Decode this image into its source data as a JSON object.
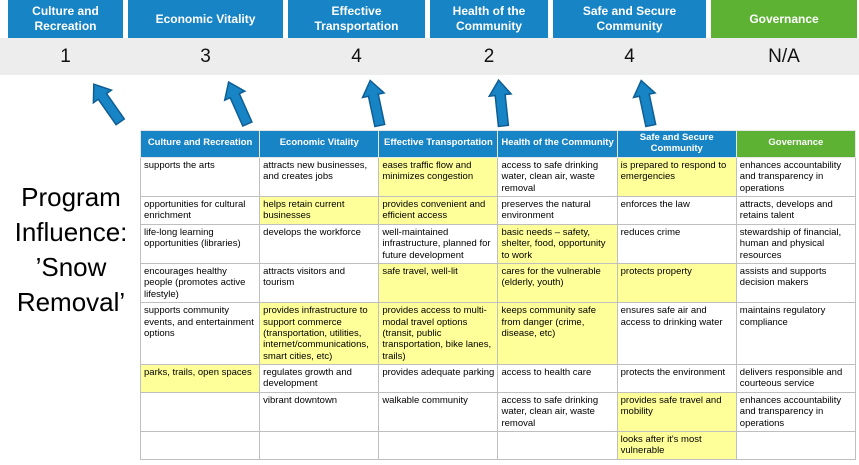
{
  "title": "Program Influence: ’Snow Removal’",
  "colors": {
    "blue": "#1784C5",
    "green": "#5EB233",
    "yellow": "#FFFF99",
    "band": "#EDEDED",
    "arrow-outline": "#0F5E93"
  },
  "categories": [
    {
      "label": "Culture and Recreation",
      "score": "1",
      "theme": "blue"
    },
    {
      "label": "Economic Vitality",
      "score": "3",
      "theme": "blue"
    },
    {
      "label": "Effective Transportation",
      "score": "4",
      "theme": "blue"
    },
    {
      "label": "Health of the Community",
      "score": "2",
      "theme": "blue"
    },
    {
      "label": "Safe and Secure Community",
      "score": "4",
      "theme": "blue"
    },
    {
      "label": "Governance",
      "score": "N/A",
      "theme": "green"
    }
  ],
  "matrix": {
    "headers": [
      {
        "label": "Culture and Recreation",
        "theme": "blue"
      },
      {
        "label": "Economic Vitality",
        "theme": "blue"
      },
      {
        "label": "Effective Transportation",
        "theme": "blue"
      },
      {
        "label": "Health of the Community",
        "theme": "blue"
      },
      {
        "label": "Safe and Secure Community",
        "theme": "blue"
      },
      {
        "label": "Governance",
        "theme": "green"
      }
    ],
    "rows": [
      [
        {
          "text": "supports the arts",
          "highlight": false
        },
        {
          "text": "attracts new businesses, and creates jobs",
          "highlight": false
        },
        {
          "text": "eases traffic flow and minimizes congestion",
          "highlight": true
        },
        {
          "text": "access to safe drinking water, clean air, waste removal",
          "highlight": false
        },
        {
          "text": "is prepared to respond to emergencies",
          "highlight": true
        },
        {
          "text": "enhances accountability and transparency in operations",
          "highlight": false
        }
      ],
      [
        {
          "text": "opportunities for cultural enrichment",
          "highlight": false
        },
        {
          "text": "helps retain current businesses",
          "highlight": true
        },
        {
          "text": "provides convenient and efficient access",
          "highlight": true
        },
        {
          "text": "preserves the natural environment",
          "highlight": false
        },
        {
          "text": "enforces the law",
          "highlight": false
        },
        {
          "text": "attracts, develops and retains talent",
          "highlight": false
        }
      ],
      [
        {
          "text": "life-long learning opportunities (libraries)",
          "highlight": false
        },
        {
          "text": "develops the workforce",
          "highlight": false
        },
        {
          "text": "well-maintained infrastructure, planned for future development",
          "highlight": false
        },
        {
          "text": "basic needs – safety, shelter, food, opportunity to work",
          "highlight": true
        },
        {
          "text": "reduces crime",
          "highlight": false
        },
        {
          "text": "stewardship of financial, human and physical resources",
          "highlight": false
        }
      ],
      [
        {
          "text": "encourages healthy people (promotes active lifestyle)",
          "highlight": false
        },
        {
          "text": "attracts visitors and tourism",
          "highlight": false
        },
        {
          "text": "safe travel, well-lit",
          "highlight": true
        },
        {
          "text": "cares for the vulnerable (elderly, youth)",
          "highlight": true
        },
        {
          "text": "protects property",
          "highlight": true
        },
        {
          "text": "assists and supports decision makers",
          "highlight": false
        }
      ],
      [
        {
          "text": "supports community events, and entertainment options",
          "highlight": false
        },
        {
          "text": "provides infrastructure to support commerce (transportation, utilities, internet/communications, smart cities, etc)",
          "highlight": true
        },
        {
          "text": "provides access to multi-modal travel options (transit, public transportation, bike lanes, trails)",
          "highlight": true
        },
        {
          "text": "keeps community safe from danger (crime, disease, etc)",
          "highlight": true
        },
        {
          "text": "ensures safe air and access to drinking water",
          "highlight": false
        },
        {
          "text": "maintains regulatory compliance",
          "highlight": false
        }
      ],
      [
        {
          "text": "parks, trails, open spaces",
          "highlight": true
        },
        {
          "text": "regulates growth and development",
          "highlight": false
        },
        {
          "text": "provides adequate parking",
          "highlight": false
        },
        {
          "text": "access to health care",
          "highlight": false
        },
        {
          "text": "protects the environment",
          "highlight": false
        },
        {
          "text": "delivers responsible and courteous service",
          "highlight": false
        }
      ],
      [
        {
          "text": "",
          "highlight": false
        },
        {
          "text": "vibrant downtown",
          "highlight": false
        },
        {
          "text": "walkable community",
          "highlight": false
        },
        {
          "text": "access to safe drinking water, clean air, waste removal",
          "highlight": false
        },
        {
          "text": "provides safe travel and mobility",
          "highlight": true
        },
        {
          "text": "enhances accountability and transparency in operations",
          "highlight": false
        }
      ],
      [
        {
          "text": "",
          "highlight": false
        },
        {
          "text": "",
          "highlight": false
        },
        {
          "text": "",
          "highlight": false
        },
        {
          "text": "",
          "highlight": false
        },
        {
          "text": "looks after it's most vulnerable",
          "highlight": true
        },
        {
          "text": "",
          "highlight": false
        }
      ]
    ]
  }
}
